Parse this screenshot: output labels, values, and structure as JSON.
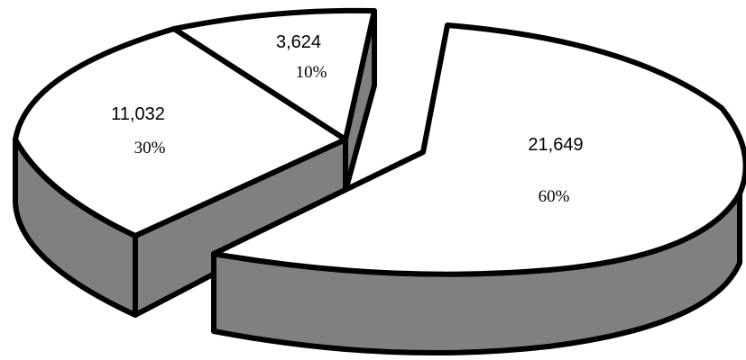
{
  "chart_data": {
    "type": "pie",
    "style": "3d-exploded",
    "slices": [
      {
        "value": 21649,
        "value_label": "21,649",
        "percent_label": "60%",
        "exploded": true
      },
      {
        "value": 11032,
        "value_label": "11,032",
        "percent_label": "30%",
        "exploded": false
      },
      {
        "value": 3624,
        "value_label": "3,624",
        "percent_label": "10%",
        "exploded": false
      }
    ],
    "legend": "none",
    "colors": {
      "top": "#ffffff",
      "side": "#808080",
      "outline": "#000000"
    }
  }
}
